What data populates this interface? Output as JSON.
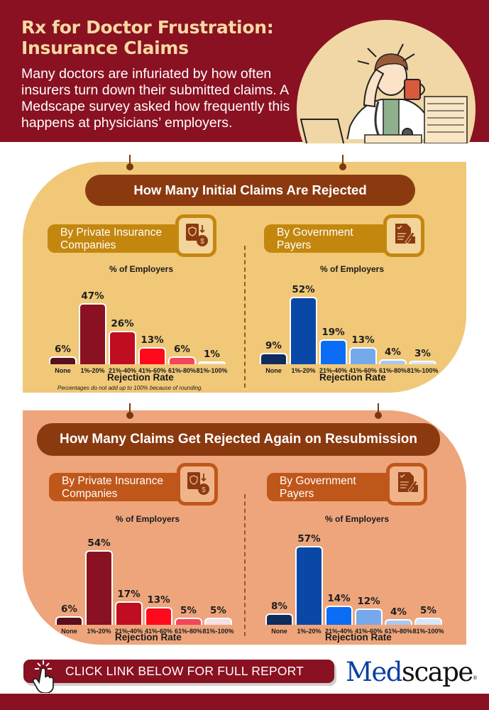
{
  "header": {
    "title_line1": "Rx for Doctor Frustration:",
    "title_line2": "Insurance Claims",
    "subtitle": "Many doctors are infuriated by how often insurers turn down their submitted claims. A Medscape survey asked how frequently this happens at physicians’ employers.",
    "illustration": "frustrated-doctor-illustration"
  },
  "sections": [
    {
      "banner": "How Many Initial Claims Are Rejected",
      "left": {
        "label_line1": "By Private Insurance",
        "label_line2": "Companies",
        "icon": "insurance-document-dollar-icon"
      },
      "right": {
        "label_line1": "By Government",
        "label_line2": "Payers",
        "icon": "signed-document-icon"
      },
      "note": "Percentages do not add up to 100% because of rounding."
    },
    {
      "banner": "How Many Claims Get Rejected Again on Resubmission",
      "left": {
        "label_line1": "By Private Insurance",
        "label_line2": "Companies",
        "icon": "insurance-document-dollar-icon"
      },
      "right": {
        "label_line1": "By Government",
        "label_line2": "Payers",
        "icon": "signed-document-icon"
      }
    }
  ],
  "chart_data": [
    {
      "type": "bar",
      "title": "% of Employers",
      "group": "Initial claims rejected — By Private Insurance Companies",
      "xlabel": "Rejection Rate",
      "ylabel": "% of Employers",
      "categories": [
        "None",
        "1%-20%",
        "21%-40%",
        "41%-60%",
        "61%-80%",
        "81%-100%"
      ],
      "values": [
        6,
        47,
        26,
        13,
        6,
        1
      ],
      "labels": [
        "6%",
        "47%",
        "26%",
        "13%",
        "6%",
        "1%"
      ],
      "colors": [
        "#5a0f1c",
        "#8a1121",
        "#c00d22",
        "#ff0a1c",
        "#f4455a",
        "#fbe6e6"
      ],
      "annotation": "Percentages do not add up to 100% because of rounding."
    },
    {
      "type": "bar",
      "title": "% of Employers",
      "group": "Initial claims rejected — By Government Payers",
      "xlabel": "Rejection Rate",
      "ylabel": "% of Employers",
      "categories": [
        "None",
        "1%-20%",
        "21%-40%",
        "41%-60%",
        "61%-80%",
        "81%-100%"
      ],
      "values": [
        9,
        52,
        19,
        13,
        4,
        3
      ],
      "labels": [
        "9%",
        "52%",
        "19%",
        "13%",
        "4%",
        "3%"
      ],
      "colors": [
        "#0f2c5e",
        "#0a48a8",
        "#0b6cf5",
        "#75a9ec",
        "#a8c8f1",
        "#d8e6f8"
      ]
    },
    {
      "type": "bar",
      "title": "% of Employers",
      "group": "Rejected again on resubmission — By Private Insurance Companies",
      "xlabel": "Rejection Rate",
      "ylabel": "% of Employers",
      "categories": [
        "None",
        "1%-20%",
        "21%-40%",
        "41%-60%",
        "61%-80%",
        "81%-100%"
      ],
      "values": [
        6,
        54,
        17,
        13,
        5,
        5
      ],
      "labels": [
        "6%",
        "54%",
        "17%",
        "13%",
        "5%",
        "5%"
      ],
      "colors": [
        "#5a0f1c",
        "#8a1121",
        "#c00d22",
        "#ff0a1c",
        "#f4455a",
        "#f7dfe2"
      ]
    },
    {
      "type": "bar",
      "title": "% of Employers",
      "group": "Rejected again on resubmission — By Government Payers",
      "xlabel": "Rejection Rate",
      "ylabel": "% of Employers",
      "categories": [
        "None",
        "1%-20%",
        "21%-40%",
        "41%-60%",
        "61%-80%",
        "81%-100%"
      ],
      "values": [
        8,
        57,
        14,
        12,
        4,
        5
      ],
      "labels": [
        "8%",
        "57%",
        "14%",
        "12%",
        "4%",
        "5%"
      ],
      "colors": [
        "#0f2c5e",
        "#0a48a8",
        "#0b6cf5",
        "#75a9ec",
        "#a8c8f1",
        "#d8e6f8"
      ]
    }
  ],
  "footer": {
    "cta_label": "CLICK LINK BELOW FOR FULL REPORT",
    "logo_part1": "Med",
    "logo_part2": "scape",
    "logo_mark": "®"
  }
}
